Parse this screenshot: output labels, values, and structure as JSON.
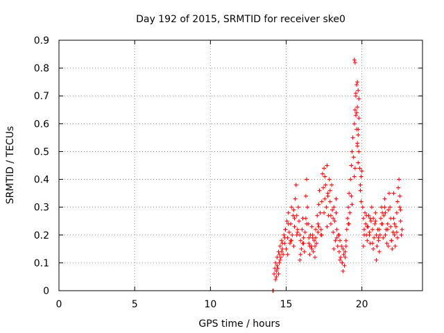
{
  "chart_data": {
    "type": "scatter",
    "title": "Day 192 of 2015, SRMTID for receiver ske0",
    "xlabel": "GPS time / hours",
    "ylabel": "SRMTID / TECUs",
    "xlim": [
      0,
      24
    ],
    "ylim": [
      0,
      0.9
    ],
    "xticks": [
      0,
      5,
      10,
      15,
      20
    ],
    "yticks": [
      0,
      0.1,
      0.2,
      0.3,
      0.4,
      0.5,
      0.6,
      0.7,
      0.8,
      0.9
    ],
    "ytick_labels": [
      "0",
      "0.1",
      "0.2",
      "0.3",
      "0.4",
      "0.5",
      "0.6",
      "0.7",
      "0.8",
      "0.9"
    ],
    "grid": true,
    "marker": "+",
    "series": [
      {
        "name": "SRMTID",
        "color": "#ff0000",
        "x": [
          14.12,
          14.15,
          14.2,
          14.25,
          14.3,
          14.35,
          14.4,
          14.45,
          14.5,
          14.55,
          14.6,
          14.65,
          14.7,
          14.75,
          14.8,
          14.85,
          14.9,
          14.95,
          15.0,
          15.05,
          15.1,
          15.15,
          15.2,
          15.25,
          15.3,
          15.35,
          15.4,
          15.45,
          15.5,
          15.55,
          15.6,
          15.65,
          15.7,
          15.75,
          15.8,
          15.85,
          15.9,
          15.95,
          16.0,
          16.05,
          16.1,
          16.15,
          16.2,
          16.25,
          16.3,
          16.35,
          16.4,
          16.45,
          16.5,
          16.55,
          16.6,
          16.65,
          16.7,
          16.75,
          16.8,
          16.85,
          16.9,
          16.95,
          17.0,
          17.05,
          17.1,
          17.15,
          17.2,
          17.25,
          17.3,
          17.35,
          17.4,
          17.45,
          17.5,
          17.55,
          17.6,
          17.65,
          17.7,
          17.75,
          17.8,
          17.85,
          17.9,
          17.95,
          18.0,
          18.05,
          18.1,
          18.15,
          18.2,
          18.25,
          18.3,
          18.35,
          18.4,
          18.45,
          18.5,
          18.55,
          18.6,
          18.65,
          18.7,
          18.75,
          18.8,
          18.85,
          18.9,
          18.95,
          19.0,
          19.05,
          19.1,
          19.15,
          19.2,
          19.25,
          19.3,
          19.35,
          19.4,
          19.45,
          19.5,
          19.55,
          19.6,
          19.65,
          19.7,
          19.75,
          19.8,
          19.85,
          19.9,
          19.95,
          20.0,
          20.05,
          20.1,
          20.15,
          20.2,
          20.25,
          20.3,
          20.35,
          20.4,
          20.45,
          20.5,
          20.55,
          20.6,
          20.65,
          20.7,
          20.75,
          20.8,
          20.85,
          20.9,
          20.95,
          21.0,
          21.05,
          21.1,
          21.15,
          21.2,
          21.25,
          21.3,
          21.35,
          21.4,
          21.45,
          21.5,
          21.55,
          21.6,
          21.65,
          21.7,
          21.75,
          21.8,
          21.85,
          21.9,
          21.95,
          22.0,
          22.05,
          22.1,
          22.15,
          22.2,
          22.25,
          22.3,
          22.35,
          22.4,
          22.45,
          22.5,
          22.55,
          22.6,
          22.65,
          14.3,
          14.4,
          14.5,
          14.6,
          14.7,
          14.9,
          15.1,
          15.3,
          15.5,
          15.7,
          15.9,
          16.1,
          16.3,
          16.5,
          16.7,
          16.9,
          17.1,
          17.3,
          17.5,
          17.7,
          17.9,
          18.1,
          18.3,
          18.5,
          18.7,
          18.9,
          19.1,
          19.3,
          19.5,
          19.7,
          19.9,
          20.1,
          20.3,
          20.5,
          20.7,
          20.9,
          21.1,
          21.3,
          21.5,
          21.7,
          21.9,
          22.1,
          22.3,
          22.5,
          14.35,
          14.55,
          14.75,
          14.95,
          15.15,
          15.35,
          15.55,
          15.75,
          15.95,
          16.15,
          16.35,
          16.55,
          16.75,
          16.95,
          17.15,
          17.35,
          17.55,
          17.75,
          17.95,
          18.15,
          18.35,
          18.55,
          18.75,
          18.95,
          19.15,
          19.35,
          19.55,
          19.75,
          19.95,
          20.15,
          20.35,
          20.55,
          20.75,
          20.95,
          21.15,
          21.35,
          21.55,
          21.75,
          21.95,
          22.15,
          22.35,
          22.55,
          19.5,
          19.55,
          19.6,
          19.65,
          19.7,
          19.75,
          19.8,
          19.7,
          19.75,
          19.65,
          19.8,
          19.6
        ],
        "y": [
          0.0,
          0.0,
          0.06,
          0.08,
          0.1,
          0.05,
          0.12,
          0.08,
          0.14,
          0.1,
          0.16,
          0.12,
          0.18,
          0.15,
          0.13,
          0.2,
          0.17,
          0.22,
          0.15,
          0.25,
          0.19,
          0.28,
          0.21,
          0.17,
          0.24,
          0.3,
          0.2,
          0.27,
          0.16,
          0.23,
          0.33,
          0.38,
          0.27,
          0.22,
          0.3,
          0.25,
          0.2,
          0.18,
          0.15,
          0.22,
          0.26,
          0.19,
          0.14,
          0.21,
          0.34,
          0.4,
          0.3,
          0.24,
          0.17,
          0.13,
          0.2,
          0.16,
          0.23,
          0.19,
          0.14,
          0.18,
          0.12,
          0.22,
          0.17,
          0.27,
          0.21,
          0.31,
          0.36,
          0.28,
          0.22,
          0.32,
          0.42,
          0.37,
          0.44,
          0.33,
          0.38,
          0.3,
          0.45,
          0.35,
          0.27,
          0.4,
          0.32,
          0.24,
          0.38,
          0.29,
          0.21,
          0.3,
          0.25,
          0.18,
          0.28,
          0.22,
          0.16,
          0.2,
          0.14,
          0.18,
          0.12,
          0.16,
          0.1,
          0.15,
          0.13,
          0.09,
          0.14,
          0.18,
          0.22,
          0.26,
          0.3,
          0.35,
          0.28,
          0.4,
          0.45,
          0.5,
          0.55,
          0.48,
          0.6,
          0.65,
          0.7,
          0.74,
          0.66,
          0.58,
          0.5,
          0.44,
          0.38,
          0.32,
          0.43,
          0.3,
          0.26,
          0.22,
          0.28,
          0.24,
          0.2,
          0.18,
          0.23,
          0.27,
          0.21,
          0.17,
          0.25,
          0.3,
          0.22,
          0.26,
          0.19,
          0.24,
          0.28,
          0.2,
          0.16,
          0.22,
          0.18,
          0.14,
          0.2,
          0.26,
          0.3,
          0.24,
          0.19,
          0.27,
          0.33,
          0.28,
          0.22,
          0.17,
          0.24,
          0.29,
          0.35,
          0.3,
          0.23,
          0.18,
          0.15,
          0.21,
          0.26,
          0.2,
          0.16,
          0.23,
          0.28,
          0.32,
          0.37,
          0.4,
          0.3,
          0.25,
          0.2,
          0.22,
          0.04,
          0.09,
          0.06,
          0.11,
          0.14,
          0.19,
          0.13,
          0.18,
          0.29,
          0.2,
          0.11,
          0.17,
          0.26,
          0.19,
          0.15,
          0.16,
          0.24,
          0.2,
          0.28,
          0.23,
          0.36,
          0.26,
          0.33,
          0.2,
          0.1,
          0.12,
          0.24,
          0.34,
          0.41,
          0.52,
          0.36,
          0.16,
          0.27,
          0.2,
          0.17,
          0.25,
          0.19,
          0.24,
          0.3,
          0.22,
          0.26,
          0.35,
          0.21,
          0.34,
          0.07,
          0.13,
          0.17,
          0.22,
          0.24,
          0.18,
          0.26,
          0.21,
          0.13,
          0.17,
          0.24,
          0.16,
          0.2,
          0.19,
          0.23,
          0.2,
          0.41,
          0.34,
          0.27,
          0.15,
          0.19,
          0.11,
          0.07,
          0.16,
          0.24,
          0.31,
          0.44,
          0.56,
          0.41,
          0.2,
          0.23,
          0.26,
          0.15,
          0.11,
          0.22,
          0.28,
          0.2,
          0.16,
          0.18,
          0.24,
          0.19,
          0.29,
          0.83,
          0.82,
          0.71,
          0.64,
          0.75,
          0.72,
          0.62,
          0.53,
          0.46,
          0.58,
          0.69,
          0.63
        ]
      }
    ]
  }
}
